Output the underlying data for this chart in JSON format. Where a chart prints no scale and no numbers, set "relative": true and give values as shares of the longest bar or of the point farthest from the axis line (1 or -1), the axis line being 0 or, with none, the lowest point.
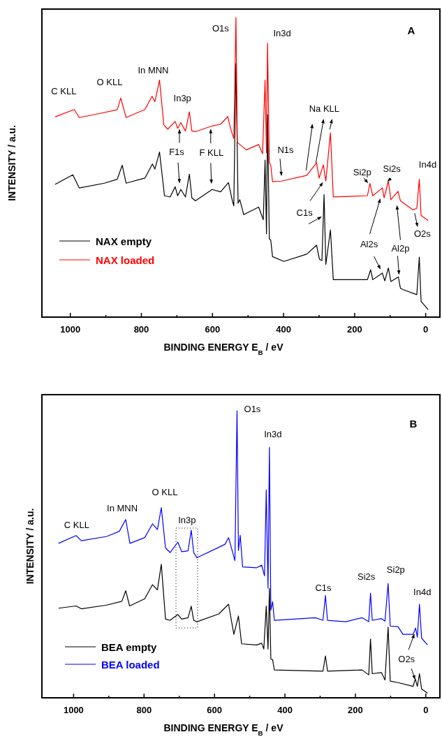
{
  "chart_data": [
    {
      "type": "line",
      "title": "A",
      "xlabel": "BINDING ENERGY  E$_{B}$ / eV",
      "ylabel": "INTENSITY / a.u.",
      "relative": true,
      "legend": "bottom left",
      "xlim": [
        1080,
        -40
      ],
      "xticks": [
        1000,
        {
          "value": 900,
          "label": null
        },
        800,
        {
          "value": 700,
          "label": null
        },
        600,
        {
          "value": 500,
          "label": null
        },
        400,
        {
          "value": 300,
          "label": null
        },
        200,
        {
          "value": 100,
          "label": null
        },
        0
      ],
      "series": [
        {
          "name": "NAX empty",
          "color": "#000000",
          "x": [
            1043,
            993,
            975,
            904,
            868,
            854,
            843,
            790,
            769,
            762,
            749,
            735,
            719,
            705,
            698,
            689,
            676,
            665,
            658,
            648,
            601,
            577,
            555,
            544,
            540,
            534,
            528,
            523,
            512,
            470,
            457,
            452,
            448,
            445,
            440,
            436,
            431,
            399,
            335,
            307,
            299,
            292,
            286,
            281,
            268,
            260,
            164,
            155,
            149,
            122,
            115,
            105,
            98,
            77,
            71,
            64,
            25,
            18,
            13,
            -7
          ],
          "values": [
            0.443,
            0.475,
            0.431,
            0.447,
            0.46,
            0.507,
            0.447,
            0.464,
            0.511,
            0.494,
            0.551,
            0.405,
            0.401,
            0.435,
            0.405,
            0.426,
            0.401,
            0.477,
            0.398,
            0.388,
            0.426,
            0.418,
            0.449,
            0.388,
            0.371,
            0.846,
            0.38,
            0.392,
            0.342,
            0.367,
            0.325,
            0.524,
            0.278,
            0.676,
            0.261,
            0.257,
            0.202,
            0.186,
            0.21,
            0.24,
            0.193,
            0.189,
            0.409,
            0.176,
            0.291,
            0.125,
            0.125,
            0.158,
            0.125,
            0.147,
            0.121,
            0.164,
            0.119,
            0.134,
            0.096,
            0.092,
            0.075,
            0.2,
            0.053,
            0.025
          ]
        },
        {
          "name": "NAX loaded",
          "color": "#ff0000",
          "x": [
            1043,
            989,
            975,
            932,
            868,
            858,
            843,
            790,
            770,
            762,
            749,
            737,
            726,
            705,
            698,
            689,
            676,
            665,
            658,
            648,
            601,
            577,
            557,
            548,
            540,
            534,
            530,
            505,
            470,
            459,
            452,
            448,
            445,
            440,
            436,
            431,
            406,
            335,
            307,
            300,
            288,
            281,
            268,
            260,
            164,
            157,
            149,
            122,
            117,
            105,
            98,
            78,
            71,
            36,
            25,
            18,
            13,
            -7
          ],
          "values": [
            0.668,
            0.693,
            0.666,
            0.676,
            0.692,
            0.731,
            0.666,
            0.693,
            0.737,
            0.719,
            0.791,
            0.642,
            0.627,
            0.653,
            0.63,
            0.649,
            0.621,
            0.685,
            0.621,
            0.619,
            0.638,
            0.644,
            0.669,
            0.625,
            0.596,
            1.0,
            0.583,
            0.558,
            0.576,
            0.545,
            0.791,
            0.549,
            0.914,
            0.515,
            0.507,
            0.452,
            0.454,
            0.473,
            0.515,
            0.464,
            0.508,
            0.454,
            0.615,
            0.401,
            0.405,
            0.446,
            0.405,
            0.431,
            0.398,
            0.454,
            0.392,
            0.42,
            0.388,
            0.358,
            0.363,
            0.46,
            0.339,
            0.322
          ]
        }
      ],
      "annotations": [
        {
          "text": "C KLL",
          "x": 989,
          "y": 0.693
        },
        {
          "text": "O KLL",
          "x": 858,
          "y": 0.731
        },
        {
          "text": "In MNN",
          "x": 749,
          "y": 0.791
        },
        {
          "text": "In3p",
          "x": 665,
          "y": 0.685
        },
        {
          "text": "O1s",
          "x": 534,
          "y": 1.0
        },
        {
          "text": "In3d",
          "x": 445,
          "y": 0.914
        },
        {
          "text": "F1s",
          "x": 689,
          "y": 0.649
        },
        {
          "text": "F KLL",
          "x": 601,
          "y": 0.638
        },
        {
          "text": "N1s",
          "x": 406,
          "y": 0.454
        },
        {
          "text": "Na KLL",
          "x": 307,
          "y": 0.515
        },
        {
          "text": "C1s",
          "x": 286,
          "y": 0.409
        },
        {
          "text": "Si2p",
          "x": 157,
          "y": 0.446
        },
        {
          "text": "Si2s",
          "x": 105,
          "y": 0.454
        },
        {
          "text": "In4d",
          "x": 18,
          "y": 0.46
        },
        {
          "text": "O2s",
          "x": 25,
          "y": 0.363
        },
        {
          "text": "Al2s",
          "x": 122,
          "y": 0.147
        },
        {
          "text": "Al2p",
          "x": 77,
          "y": 0.134
        }
      ]
    },
    {
      "type": "line",
      "title": "B",
      "xlabel": "BINDING ENERGY  E$_{B}$ / eV",
      "ylabel": "INTENSITY / a.u.",
      "relative": true,
      "legend": "bottom left",
      "xlim": [
        1090,
        -40
      ],
      "xticks": [
        1000,
        {
          "value": 900,
          "label": null
        },
        800,
        {
          "value": 700,
          "label": null
        },
        600,
        {
          "value": 500,
          "label": null
        },
        400,
        {
          "value": 300,
          "label": null
        },
        200,
        {
          "value": 100,
          "label": null
        },
        0
      ],
      "series": [
        {
          "name": "BEA empty",
          "color": "#000000",
          "x": [
            1043,
            993,
            978,
            906,
            863,
            852,
            841,
            798,
            776,
            762,
            751,
            739,
            726,
            704,
            693,
            675,
            666,
            659,
            650,
            588,
            560,
            545,
            538,
            532,
            523,
            480,
            466,
            460,
            453,
            448,
            444,
            440,
            435,
            430,
            292,
            285,
            279,
            181,
            162,
            157,
            152,
            126,
            116,
            107,
            101,
            79,
            36,
            30,
            24,
            18,
            12,
            -5
          ],
          "values": [
            0.312,
            0.32,
            0.31,
            0.323,
            0.336,
            0.373,
            0.32,
            0.345,
            0.394,
            0.376,
            0.465,
            0.274,
            0.27,
            0.29,
            0.274,
            0.279,
            0.319,
            0.27,
            0.265,
            0.292,
            0.326,
            0.221,
            null,
            0.285,
            0.188,
            0.184,
            0.19,
            0.17,
            0.32,
            0.17,
            0.381,
            0.135,
            0.133,
            0.097,
            0.093,
            0.146,
            0.093,
            0.097,
            0.08,
            0.205,
            0.084,
            0.088,
            0.062,
            0.246,
            0.058,
            0.053,
            0.04,
            0.066,
            0.04,
            0.084,
            0.031,
            0.016
          ]
        },
        {
          "name": "BEA loaded",
          "color": "#0000ff",
          "x": [
            1043,
            993,
            978,
            906,
            870,
            852,
            840,
            798,
            776,
            762,
            751,
            739,
            726,
            704,
            693,
            675,
            666,
            659,
            650,
            588,
            570,
            560,
            542,
            536,
            532,
            527,
            520,
            480,
            466,
            458,
            453,
            448,
            444,
            440,
            435,
            430,
            314,
            292,
            285,
            279,
            227,
            181,
            162,
            157,
            152,
            126,
            116,
            107,
            101,
            79,
            65,
            36,
            29,
            24,
            18,
            12,
            -5
          ],
          "values": [
            0.538,
            0.565,
            0.547,
            0.562,
            0.58,
            0.621,
            0.538,
            0.558,
            0.606,
            0.586,
            0.662,
            0.522,
            0.506,
            0.542,
            0.509,
            0.512,
            0.584,
            0.506,
            0.488,
            0.524,
            0.535,
            0.558,
            0.478,
            1.0,
            0.513,
            0.566,
            0.456,
            0.453,
            0.462,
            0.425,
            0.724,
            0.382,
            0.872,
            0.305,
            0.335,
            0.27,
            0.279,
            0.27,
            0.356,
            0.27,
            0.265,
            0.279,
            0.265,
            0.365,
            0.27,
            0.276,
            0.267,
            0.398,
            0.25,
            0.248,
            0.221,
            0.221,
            0.243,
            0.211,
            0.326,
            0.208,
            0.184
          ]
        }
      ],
      "annotations": [
        {
          "text": "O1s",
          "x": 536,
          "y": 1.0
        },
        {
          "text": "In3d",
          "x": 444,
          "y": 0.872
        },
        {
          "text": "O KLL",
          "x": 751,
          "y": 0.662
        },
        {
          "text": "In MNN",
          "x": 852,
          "y": 0.621
        },
        {
          "text": "In3p",
          "x": 666,
          "y": 0.584
        },
        {
          "text": "C KLL",
          "x": 993,
          "y": 0.565
        },
        {
          "text": "C1s",
          "x": 285,
          "y": 0.356
        },
        {
          "text": "Si2s",
          "x": 157,
          "y": 0.365
        },
        {
          "text": "Si2p",
          "x": 107,
          "y": 0.398
        },
        {
          "text": "In4d",
          "x": 18,
          "y": 0.326
        },
        {
          "text": "O2s",
          "x": 29,
          "y": 0.243
        }
      ]
    }
  ]
}
